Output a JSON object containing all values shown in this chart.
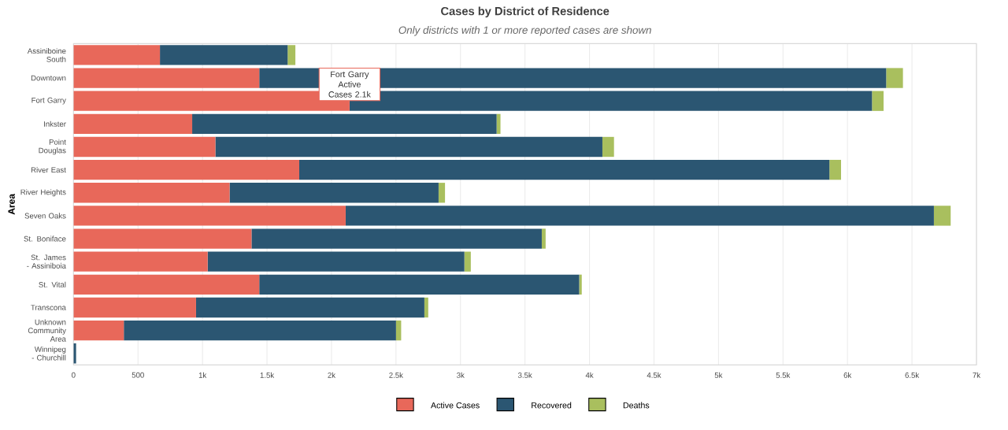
{
  "chart_data": {
    "type": "bar",
    "orientation": "horizontal",
    "stacked": true,
    "title": "Cases by District of Residence",
    "subtitle": "Only districts with 1 or more reported cases are shown",
    "ylabel": "Area",
    "categories": [
      "Assiniboine South",
      "Downtown",
      "Fort Garry",
      "Inkster",
      "Point Douglas",
      "River East",
      "River Heights",
      "Seven Oaks",
      "St. Boniface",
      "St. James - Assiniboia",
      "St. Vital",
      "Transcona",
      "Unknown Community Area",
      "Winnipeg - Churchill"
    ],
    "series": [
      {
        "name": "Active Cases",
        "color": "#e8685a",
        "values": [
          670,
          1440,
          2140,
          920,
          1100,
          1750,
          1210,
          2110,
          1380,
          1040,
          1440,
          950,
          390,
          0
        ]
      },
      {
        "name": "Recovered",
        "color": "#2b5672",
        "values": [
          990,
          4860,
          4050,
          2360,
          3000,
          4110,
          1620,
          4560,
          2250,
          1990,
          2480,
          1770,
          2110,
          20
        ]
      },
      {
        "name": "Deaths",
        "color": "#a9bf5e",
        "values": [
          60,
          130,
          90,
          30,
          90,
          90,
          50,
          130,
          30,
          50,
          20,
          30,
          40,
          0
        ]
      }
    ],
    "xlim": [
      0,
      7000
    ],
    "xticks": [
      0,
      500,
      {
        "value": 1000,
        "label": "1k"
      },
      {
        "value": 1500,
        "label": "1.5k"
      },
      {
        "value": 2000,
        "label": "2k"
      },
      {
        "value": 2500,
        "label": "2.5k"
      },
      {
        "value": 3000,
        "label": "3k"
      },
      {
        "value": 3500,
        "label": "3.5k"
      },
      {
        "value": 4000,
        "label": "4k"
      },
      {
        "value": 4500,
        "label": "4.5k"
      },
      {
        "value": 5000,
        "label": "5k"
      },
      {
        "value": 5500,
        "label": "5.5k"
      },
      {
        "value": 6000,
        "label": "6k"
      },
      {
        "value": 6500,
        "label": "6.5k"
      },
      {
        "value": 7000,
        "label": "7k"
      }
    ],
    "annotations": [
      {
        "text": "Fort Garry Active Cases 2.1k",
        "x": 2140,
        "y": "Fort Garry"
      }
    ],
    "grid": "x",
    "legend": "bottom"
  }
}
